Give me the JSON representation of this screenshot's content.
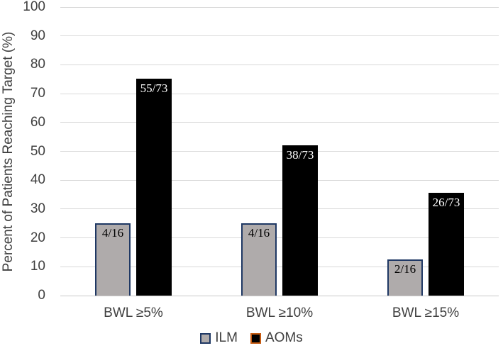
{
  "chart_data": {
    "type": "bar",
    "title": "",
    "ylabel": "Percent of Patients Reaching Target (%)",
    "xlabel": "",
    "ylim": [
      0,
      100
    ],
    "ytick_step": 10,
    "grid": "horizontal",
    "legend_position": "bottom-center",
    "categories": [
      "BWL ≥5%",
      "BWL ≥10%",
      "BWL ≥15%"
    ],
    "series": [
      {
        "name": "ILM",
        "values": [
          25,
          25,
          12.5
        ],
        "bar_labels": [
          "4/16",
          "4/16",
          "2/16"
        ],
        "fill": "#afabab",
        "bar_border": "#1f3864",
        "legend_border": "#1f3864",
        "label_color": "#000000"
      },
      {
        "name": "AOMs",
        "values": [
          75.3,
          52.1,
          35.6
        ],
        "bar_labels": [
          "55/73",
          "38/73",
          "26/73"
        ],
        "fill": "#000000",
        "bar_border": "#000000",
        "legend_border": "#c55a11",
        "label_color": "#ffffff"
      }
    ],
    "colors": {
      "text": "#404040",
      "gridline": "#d9d9d9",
      "axis_line": "#c8c8c8"
    }
  }
}
